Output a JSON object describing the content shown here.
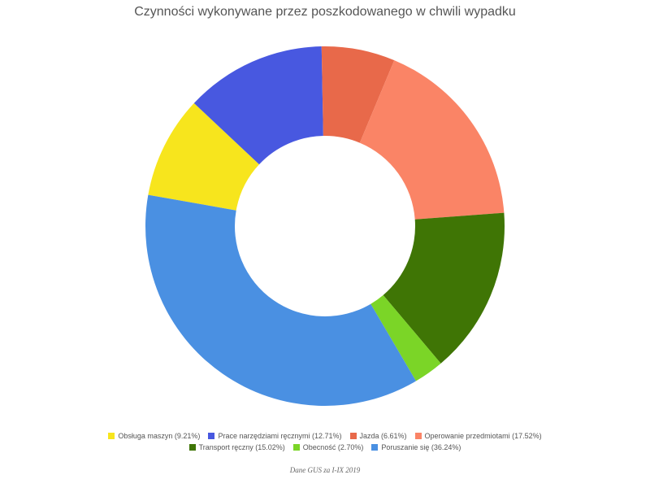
{
  "chart_data": {
    "type": "pie",
    "title": "Czynności wykonywane przez poszkodowanego w chwili wypadku",
    "donut": true,
    "categories": [
      "Obsługa maszyn",
      "Prace narzędziami ręcznymi",
      "Jazda",
      "Operowanie przedmiotami",
      "Transport ręczny",
      "Obecność",
      "Poruszanie się"
    ],
    "values": [
      9.21,
      12.71,
      6.61,
      17.52,
      15.02,
      2.7,
      36.24
    ],
    "legend_labels": [
      "Obsługa maszyn (9.21%)",
      "Prace narzędziami ręcznymi (12.71%)",
      "Jazda (6.61%)",
      "Operowanie przedmiotami (17.52%)",
      "Transport ręczny (15.02%)",
      "Obecność (2.70%)",
      "Poruszanie się (36.24%)"
    ],
    "colors": [
      "#f7e51d",
      "#4858e0",
      "#e8694a",
      "#fa8466",
      "#3f7505",
      "#7bd527",
      "#4a90e2"
    ],
    "legend_position": "bottom"
  },
  "source_note": "Dane GUS za I-IX 2019"
}
